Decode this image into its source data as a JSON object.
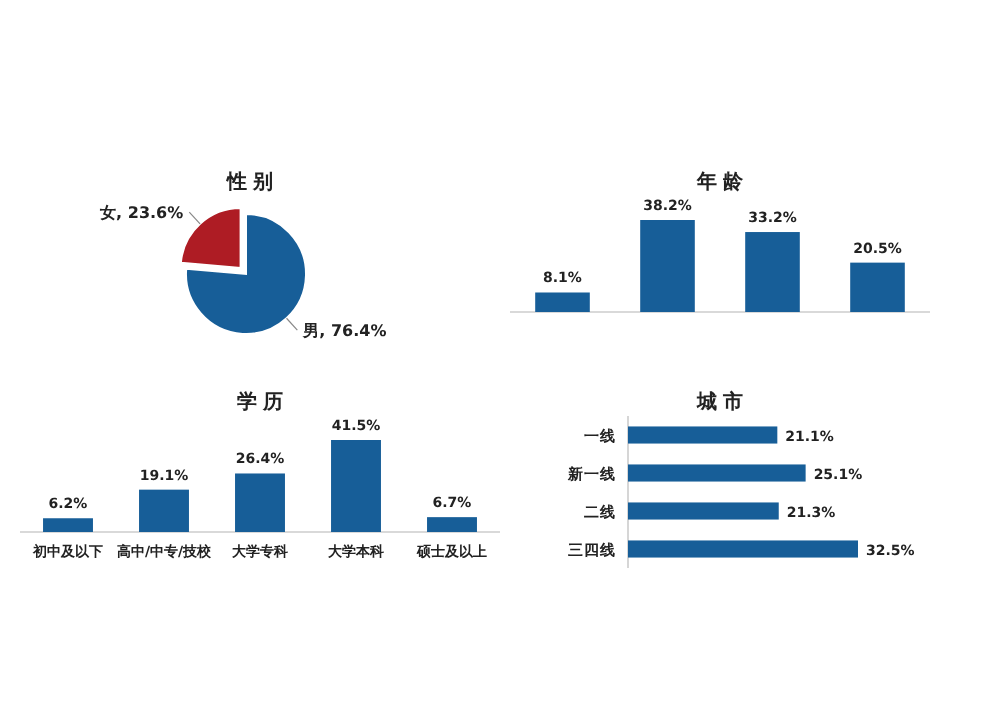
{
  "chart_data": [
    {
      "type": "pie",
      "title": "性 别",
      "categories": [
        "男",
        "女"
      ],
      "values": [
        76.4,
        23.6
      ],
      "colors": [
        "#175e98",
        "#ae1c24"
      ],
      "value_labels": [
        "76.4%",
        "23.6%"
      ]
    },
    {
      "type": "bar",
      "title": "年 龄",
      "categories": [
        null,
        null,
        null,
        null
      ],
      "values": [
        8.1,
        38.2,
        33.2,
        20.5
      ],
      "color": "#175e98",
      "value_labels": [
        "8.1%",
        "38.2%",
        "33.2%",
        "20.5%"
      ]
    },
    {
      "type": "bar",
      "title": "学 历",
      "categories": [
        "初中及以下",
        "高中/中专/技校",
        "大学专科",
        "大学本科",
        "硕士及以上"
      ],
      "values": [
        6.2,
        19.1,
        26.4,
        41.5,
        6.7
      ],
      "color": "#175e98",
      "value_labels": [
        "6.2%",
        "19.1%",
        "26.4%",
        "41.5%",
        "6.7%"
      ]
    },
    {
      "type": "bar",
      "orientation": "horizontal",
      "title": "城 市",
      "categories": [
        "一线",
        "新一线",
        "二线",
        "三四线"
      ],
      "values": [
        21.1,
        25.1,
        21.3,
        32.5
      ],
      "color": "#175e98",
      "value_labels": [
        "21.1%",
        "25.1%",
        "21.3%",
        "32.5%"
      ]
    }
  ]
}
